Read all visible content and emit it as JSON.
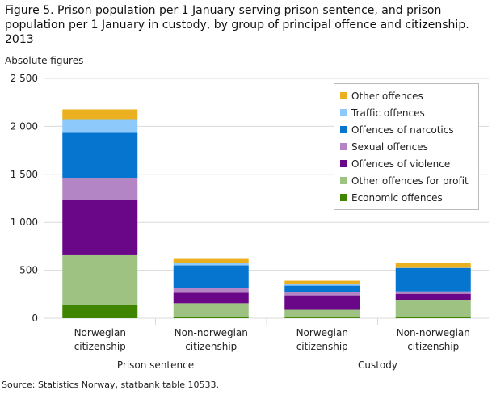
{
  "chart_data": {
    "type": "bar",
    "stacked": true,
    "title": "Figure 5. Prison population per 1 January serving prison sentence, and prison population per 1 January in custody, by group of principal offence and citizenship. 2013",
    "ylabel": "Absolute figures",
    "xlabel": "",
    "ylim": [
      0,
      2500
    ],
    "yticks": [
      "0",
      "500",
      "1 000",
      "1 500",
      "2 000",
      "2 500"
    ],
    "grid": true,
    "legend_position": "top-right",
    "categories": [
      "Norwegian citizenship",
      "Non-norwegian citizenship",
      "Norwegian citizenship",
      "Non-norwegian citizenship"
    ],
    "groups": [
      {
        "label": "Prison sentence",
        "span": [
          0,
          1
        ]
      },
      {
        "label": "Custody",
        "span": [
          2,
          3
        ]
      }
    ],
    "series": [
      {
        "name": "Economic offences",
        "color": "#3f8500",
        "values": [
          145,
          14,
          8,
          12
        ]
      },
      {
        "name": "Other offences for profit",
        "color": "#9dc281",
        "values": [
          512,
          143,
          80,
          176
        ]
      },
      {
        "name": "Offences of violence",
        "color": "#690788",
        "values": [
          580,
          109,
          151,
          67
        ]
      },
      {
        "name": "Sexual offences",
        "color": "#b485c4",
        "values": [
          227,
          50,
          34,
          25
        ]
      },
      {
        "name": "Offences of narcotics",
        "color": "#0675d0",
        "values": [
          468,
          235,
          67,
          244
        ]
      },
      {
        "name": "Traffic offences",
        "color": "#8dc9fa",
        "values": [
          143,
          28,
          20,
          2
        ]
      },
      {
        "name": "Other offences",
        "color": "#ebb01f",
        "values": [
          101,
          39,
          31,
          50
        ]
      }
    ],
    "source": "Source: Statistics Norway, statbank table 10533."
  }
}
